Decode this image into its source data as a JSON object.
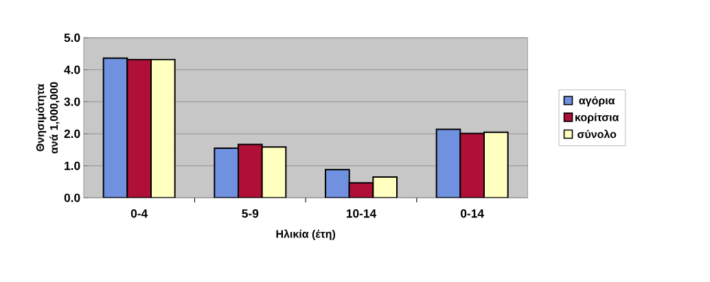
{
  "chart_data": {
    "type": "bar",
    "xlabel": "Ηλικία (έτη)",
    "ylabel": "Θνησιμότητα ανά 1,000,000",
    "categories": [
      "0-4",
      "5-9",
      "10-14",
      "0-14"
    ],
    "series": [
      {
        "name": "αγόρια",
        "color": "#7090e0",
        "values": [
          4.36,
          1.55,
          0.88,
          2.14
        ]
      },
      {
        "name": "κορίτσια",
        "color": "#b01038",
        "values": [
          4.32,
          1.67,
          0.47,
          2.01
        ]
      },
      {
        "name": "σύνολο",
        "color": "#ffffc0",
        "values": [
          4.32,
          1.59,
          0.65,
          2.05
        ]
      }
    ],
    "ylim": [
      0,
      5
    ],
    "yticks": [
      {
        "value": 0,
        "label": "0.0"
      },
      {
        "value": 1,
        "label": "1.0"
      },
      {
        "value": 2,
        "label": "2.0"
      },
      {
        "value": 3,
        "label": "3.0"
      },
      {
        "value": 4,
        "label": "4.0"
      },
      {
        "value": 5,
        "label": "5.0"
      }
    ],
    "grid": "y",
    "legend": "right"
  }
}
